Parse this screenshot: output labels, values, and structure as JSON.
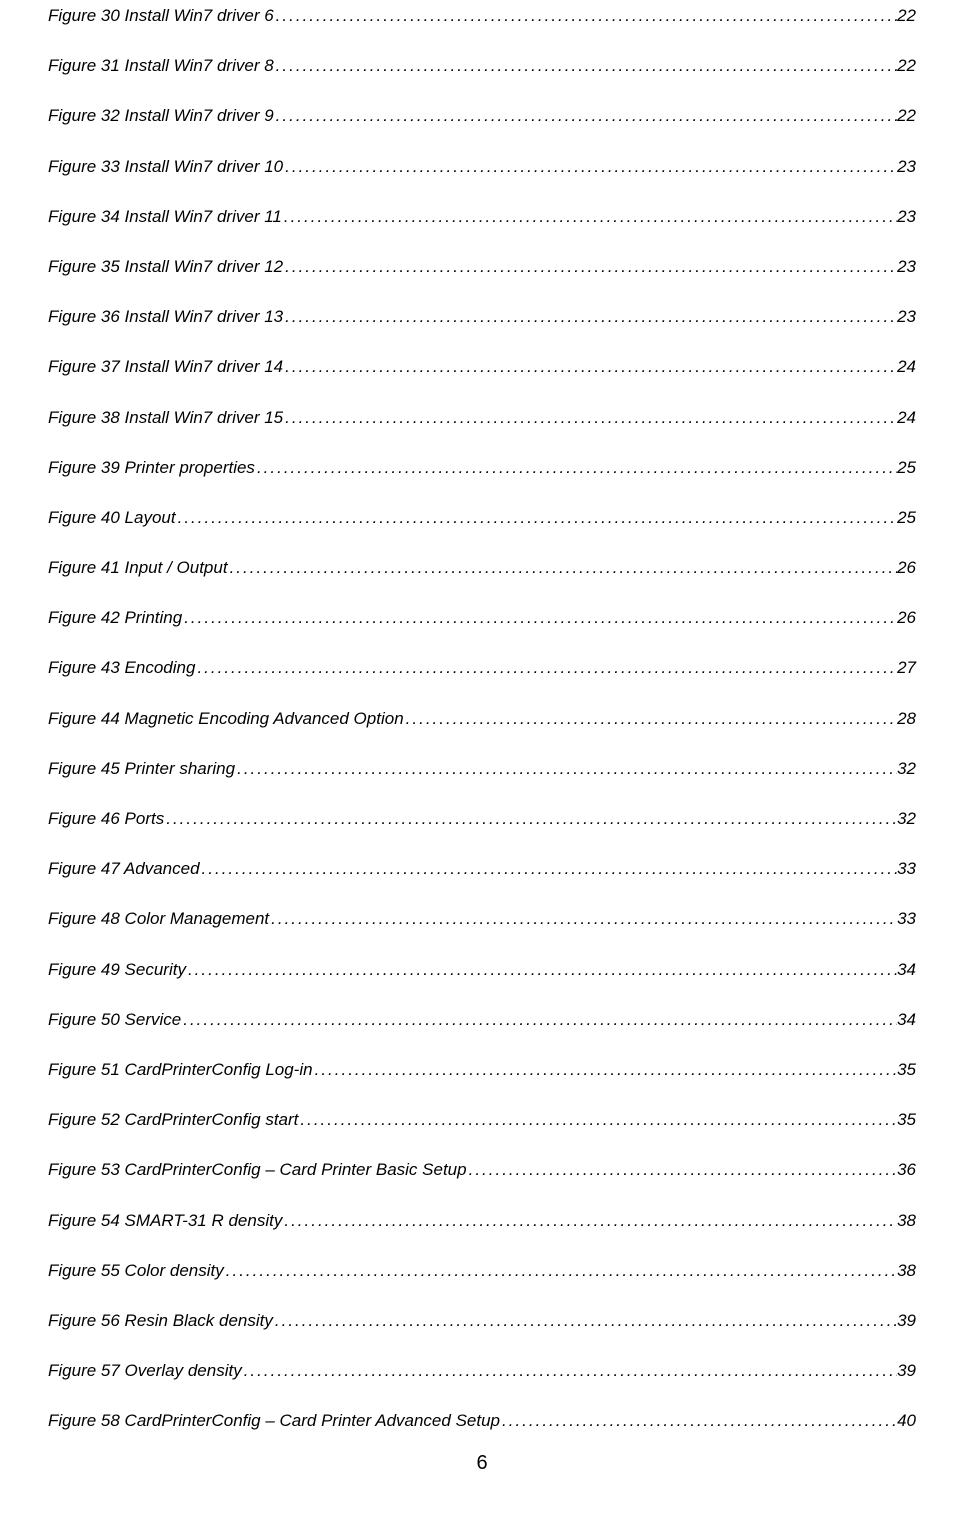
{
  "toc": {
    "entries": [
      {
        "label": "Figure 30 Install Win7 driver 6",
        "page": "22"
      },
      {
        "label": "Figure 31 Install Win7 driver 8",
        "page": "22"
      },
      {
        "label": "Figure 32 Install Win7 driver 9",
        "page": "22"
      },
      {
        "label": "Figure 33 Install Win7 driver 10",
        "page": "23"
      },
      {
        "label": "Figure 34 Install Win7 driver 11",
        "page": "23"
      },
      {
        "label": "Figure 35 Install Win7 driver 12",
        "page": "23"
      },
      {
        "label": "Figure 36 Install Win7 driver 13",
        "page": "23"
      },
      {
        "label": "Figure 37 Install Win7 driver 14",
        "page": "24"
      },
      {
        "label": "Figure 38 Install Win7 driver 15",
        "page": "24"
      },
      {
        "label": "Figure 39 Printer properties",
        "page": "25"
      },
      {
        "label": "Figure 40 Layout",
        "page": "25"
      },
      {
        "label": "Figure 41 Input / Output",
        "page": "26"
      },
      {
        "label": "Figure 42 Printing",
        "page": "26"
      },
      {
        "label": "Figure 43 Encoding",
        "page": "27"
      },
      {
        "label": "Figure 44 Magnetic Encoding Advanced Option",
        "page": "28"
      },
      {
        "label": "Figure 45 Printer sharing",
        "page": "32"
      },
      {
        "label": "Figure 46 Ports",
        "page": "32"
      },
      {
        "label": "Figure 47 Advanced",
        "page": "33"
      },
      {
        "label": "Figure 48 Color Management",
        "page": "33"
      },
      {
        "label": "Figure 49 Security",
        "page": "34"
      },
      {
        "label": "Figure 50 Service",
        "page": "34"
      },
      {
        "label": "Figure 51 CardPrinterConfig Log-in",
        "page": "35"
      },
      {
        "label": "Figure 52 CardPrinterConfig start",
        "page": "35"
      },
      {
        "label": "Figure 53 CardPrinterConfig – Card Printer Basic Setup",
        "page": "36"
      },
      {
        "label": "Figure 54 SMART-31 R density",
        "page": "38"
      },
      {
        "label": "Figure 55 Color density",
        "page": "38"
      },
      {
        "label": "Figure 56 Resin Black density",
        "page": "39"
      },
      {
        "label": "Figure 57 Overlay density",
        "page": "39"
      },
      {
        "label": "Figure 58 CardPrinterConfig – Card Printer Advanced Setup",
        "page": "40"
      }
    ]
  },
  "footer": {
    "page_number": "6"
  },
  "style": {
    "text_color": "#000000",
    "background_color": "#ffffff",
    "font_style": "italic",
    "entry_fontsize": 17,
    "pagenum_fontsize": 20
  }
}
